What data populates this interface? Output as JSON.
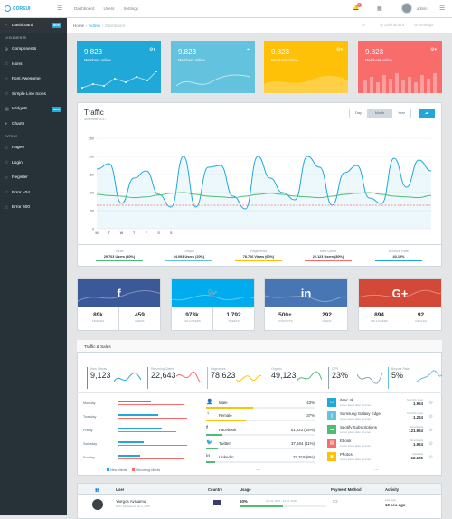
{
  "header": {
    "brand": "COREUI",
    "nav": [
      "Dashboard",
      "Users",
      "Settings"
    ],
    "notif_count": "5",
    "user": "admin"
  },
  "sidebar": {
    "sections": [
      {
        "title": "",
        "items": [
          {
            "label": "Dashboard",
            "icon": "speedometer-icon",
            "badge": "NEW",
            "active": true
          }
        ]
      },
      {
        "title": "UI ELEMENTS",
        "items": [
          {
            "label": "Components",
            "icon": "puzzle-icon",
            "chevron": true
          },
          {
            "label": "Icons",
            "icon": "star-icon",
            "chevron": true
          },
          {
            "label": "Font Awesome",
            "icon": "star-icon"
          },
          {
            "label": "Simple Line Icons",
            "icon": "star-icon"
          },
          {
            "label": "Widgets",
            "icon": "calculator-icon",
            "badge": "NEW"
          },
          {
            "label": "Charts",
            "icon": "pie-chart-icon"
          }
        ]
      },
      {
        "title": "EXTRAS",
        "items": [
          {
            "label": "Pages",
            "icon": "star-icon",
            "chevron": true
          },
          {
            "label": "Login",
            "icon": "star-icon"
          },
          {
            "label": "Register",
            "icon": "star-icon"
          },
          {
            "label": "Error 404",
            "icon": "star-icon"
          },
          {
            "label": "Error 500",
            "icon": "star-icon"
          }
        ]
      }
    ]
  },
  "breadcrumb": {
    "items": [
      "Home",
      "Admin",
      "Dashboard"
    ],
    "right": [
      "Dashboard",
      "Settings"
    ]
  },
  "stats": [
    {
      "value": "9.823",
      "label": "Members online",
      "color": "#20a8d8"
    },
    {
      "value": "9.823",
      "label": "Members online",
      "color": "#63c2de"
    },
    {
      "value": "9.823",
      "label": "Members online",
      "color": "#ffc107"
    },
    {
      "value": "9.823",
      "label": "Members online",
      "color": "#f86c6b"
    }
  ],
  "traffic": {
    "title": "Traffic",
    "subtitle": "November 2017",
    "buttons": [
      "Day",
      "Month",
      "Year"
    ],
    "active_button": "Month",
    "footer": [
      {
        "title": "Visits",
        "value": "29.703 Users (40%)",
        "color": "#4dbd74"
      },
      {
        "title": "Unique",
        "value": "24.093 Users (20%)",
        "color": "#63c2de"
      },
      {
        "title": "Pageviews",
        "value": "78.706 Views (60%)",
        "color": "#ffc107"
      },
      {
        "title": "New Users",
        "value": "22.123 Users (80%)",
        "color": "#f86c6b"
      },
      {
        "title": "Bounce Rate",
        "value": "40.15%",
        "color": "#20a8d8"
      }
    ]
  },
  "chart_data": {
    "type": "line",
    "title": "Traffic",
    "subtitle": "November 2017",
    "x": [
      "M",
      "T",
      "W",
      "T",
      "F",
      "S",
      "S",
      "M",
      "T",
      "W",
      "T",
      "F",
      "S",
      "S",
      "M",
      "T",
      "W",
      "T",
      "F",
      "S",
      "S",
      "M",
      "T",
      "W",
      "T",
      "F",
      "S",
      "S"
    ],
    "ylim": [
      0,
      250
    ],
    "yticks": [
      0,
      50,
      100,
      150,
      200,
      250
    ],
    "series": [
      {
        "color": "#20a8d8",
        "values": [
          165,
          180,
          70,
          140,
          160,
          95,
          60,
          200,
          60,
          170,
          175,
          90,
          55,
          200,
          140,
          100,
          80,
          200,
          170,
          65,
          155,
          175,
          85,
          70,
          195,
          115,
          190,
          160
        ]
      },
      {
        "color": "#4dbd74",
        "values": [
          95,
          92,
          90,
          86,
          88,
          93,
          98,
          100,
          95,
          90,
          88,
          86,
          90,
          95,
          98,
          95,
          90,
          88,
          86,
          90,
          95,
          98,
          100,
          95,
          90,
          88,
          86,
          92
        ]
      },
      {
        "color": "#f86c6b",
        "values": [
          65,
          65,
          65,
          65,
          65,
          65,
          65,
          65,
          65,
          65,
          65,
          65,
          65,
          65,
          65,
          65,
          65,
          65,
          65,
          65,
          65,
          65,
          65,
          65,
          65,
          65,
          65,
          65
        ]
      }
    ]
  },
  "social": [
    {
      "icon": "facebook-icon",
      "glyph": "f",
      "color": "#3b5998",
      "a": "89k",
      "a_label": "friends",
      "b": "459",
      "b_label": "feeds"
    },
    {
      "icon": "twitter-icon",
      "glyph": "🐦",
      "color": "#00aced",
      "a": "973k",
      "a_label": "followers",
      "b": "1.792",
      "b_label": "tweets"
    },
    {
      "icon": "linkedin-icon",
      "glyph": "in",
      "color": "#4875b4",
      "a": "500+",
      "a_label": "contacts",
      "b": "292",
      "b_label": "feeds"
    },
    {
      "icon": "google-plus-icon",
      "glyph": "G+",
      "color": "#d34836",
      "a": "894",
      "a_label": "followers",
      "b": "92",
      "b_label": "circles"
    }
  ],
  "traffic_sales": {
    "title": "Traffic & Sales",
    "mini": [
      {
        "label": "New Clients",
        "value": "9,123",
        "color": "#20a8d8"
      },
      {
        "label": "Recurring Clients",
        "value": "22,643",
        "color": "#f86c6b"
      },
      {
        "label": "Pageviews",
        "value": "78,623",
        "color": "#ffc107"
      },
      {
        "label": "Organic",
        "value": "49,123",
        "color": "#4dbd74"
      },
      {
        "label": "CTR",
        "value": "23%",
        "color": "#90a4ae"
      },
      {
        "label": "Bounce Rate",
        "value": "5%",
        "color": "#63c2de"
      }
    ],
    "weekdays": [
      {
        "day": "Monday",
        "new": 0.45,
        "rec": 0.9
      },
      {
        "day": "Tuesday",
        "new": 0.55,
        "rec": 0.95
      },
      {
        "day": "Friday",
        "new": 0.6,
        "rec": 0.8
      },
      {
        "day": "Saturday",
        "new": 0.35,
        "rec": 0.95
      },
      {
        "day": "Sunday",
        "new": 0.3,
        "rec": 0.9
      }
    ],
    "legend": [
      "New clients",
      "Recurring clients"
    ],
    "gender": [
      {
        "name": "Male",
        "pct": "43%",
        "fill": 0.43,
        "icon": "user-icon",
        "color": "#ffc107"
      },
      {
        "name": "Female",
        "pct": "37%",
        "fill": 0.37,
        "icon": "female-icon",
        "color": "#ffc107"
      }
    ],
    "sources": [
      {
        "name": "Facebook",
        "value": "51,223 (15%)",
        "fill": 0.15,
        "icon": "facebook-icon",
        "color": "#4dbd74"
      },
      {
        "name": "Twitter",
        "value": "37,564 (11%)",
        "fill": 0.11,
        "icon": "twitter-icon",
        "color": "#4dbd74"
      },
      {
        "name": "LinkedIn",
        "value": "27,319 (8%)",
        "fill": 0.08,
        "icon": "linkedin-icon",
        "color": "#4dbd74"
      }
    ],
    "products": [
      {
        "name": "iMac 4k",
        "sub": "Lorem ipsum dolor sit amet",
        "stat": "Sold this week",
        "value": "1.924",
        "color": "#20a8d8",
        "icon": "desktop-icon"
      },
      {
        "name": "Samsung Galaxy Edge",
        "sub": "Lorem ipsum dolor sit amet",
        "stat": "Sold this week",
        "value": "1.224",
        "color": "#63c2de",
        "icon": "tablet-icon"
      },
      {
        "name": "Spotify Subscriptions",
        "sub": "Lorem ipsum dolor sit amet",
        "stat": "Downloads",
        "value": "121.924",
        "color": "#4dbd74",
        "icon": "cloud-icon"
      },
      {
        "name": "Ebook",
        "sub": "Lorem ipsum dolor sit amet",
        "stat": "Downloads",
        "value": "1.924",
        "color": "#f86c6b",
        "icon": "book-icon"
      },
      {
        "name": "Photos",
        "sub": "Lorem ipsum dolor sit amet",
        "stat": "Uploaded",
        "value": "12.125",
        "color": "#ffc107",
        "icon": "camera-icon"
      }
    ],
    "more": "..."
  },
  "table": {
    "headers": [
      "User",
      "Country",
      "Usage",
      "Payment Method",
      "Activity"
    ],
    "rows": [
      {
        "name": "Yiorgos Avraamu",
        "sub": "New | Registered: Jan 1, 2015",
        "usage": "50%",
        "usage_fill": 0.5,
        "period": "Jun 11, 2015 - Jul 10, 2015",
        "activity_label": "Last login",
        "activity": "10 sec ago"
      }
    ]
  }
}
